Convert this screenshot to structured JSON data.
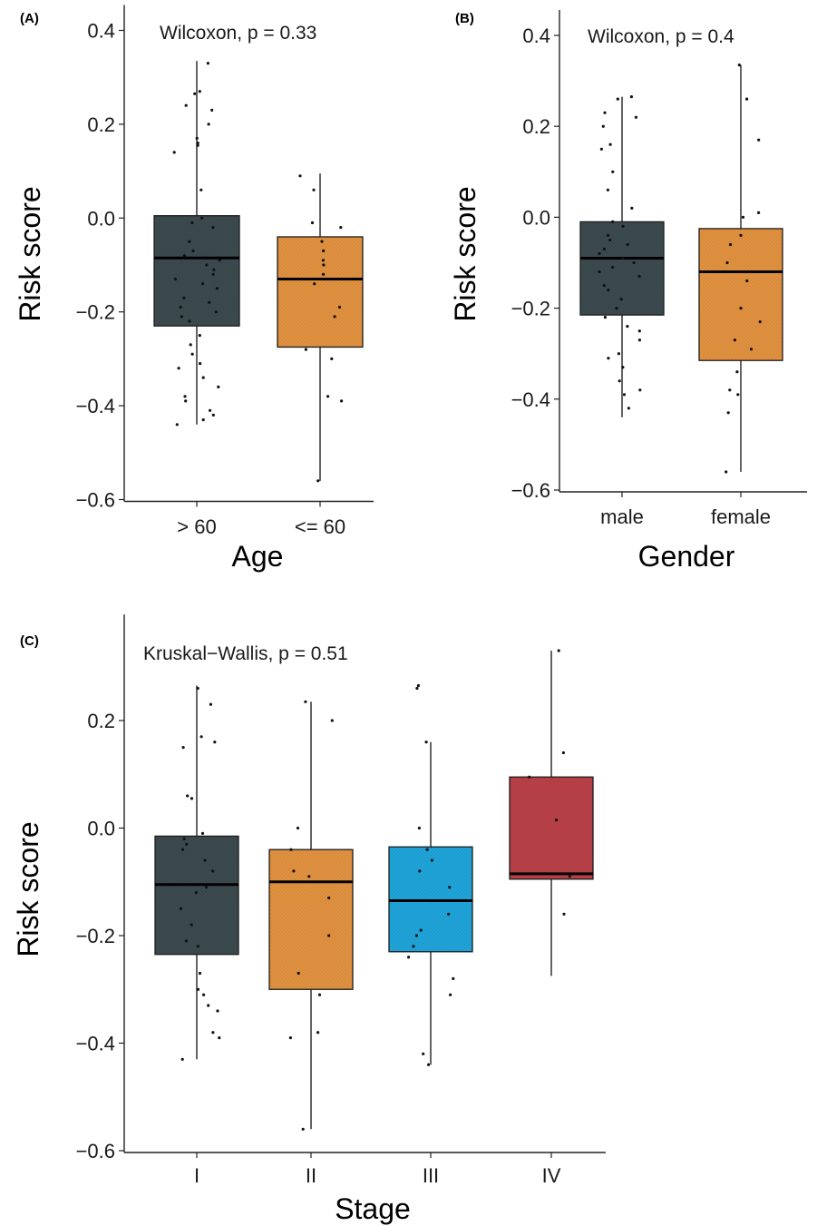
{
  "chart_data": [
    {
      "panel": "(A)",
      "type": "box",
      "annotation": "Wilcoxon, p = 0.33",
      "xlabel": "Age",
      "ylabel": "Risk score",
      "ylim": [
        -0.6,
        0.4
      ],
      "yticks": [
        "0.4",
        "0.2",
        "0.0",
        "-0.2",
        "-0.4",
        "-0.6"
      ],
      "categories": [
        "> 60",
        "<= 60"
      ],
      "colors": [
        "#3b4a4e",
        "#e0913f"
      ],
      "boxes": [
        {
          "whisker_low": -0.44,
          "q1": -0.23,
          "median": -0.085,
          "q3": 0.005,
          "whisker_high": 0.335
        },
        {
          "whisker_low": -0.56,
          "q1": -0.275,
          "median": -0.13,
          "q3": -0.04,
          "whisker_high": 0.095
        }
      ],
      "points": [
        [
          0.33,
          0.27,
          0.265,
          0.24,
          0.23,
          0.2,
          0.17,
          0.16,
          0.155,
          0.14,
          0.06,
          0.0,
          -0.01,
          -0.02,
          -0.05,
          -0.07,
          -0.08,
          -0.09,
          -0.1,
          -0.11,
          -0.12,
          -0.13,
          -0.14,
          -0.15,
          -0.17,
          -0.18,
          -0.19,
          -0.2,
          -0.21,
          -0.22,
          -0.25,
          -0.27,
          -0.29,
          -0.31,
          -0.32,
          -0.34,
          -0.36,
          -0.38,
          -0.39,
          -0.41,
          -0.42,
          -0.43,
          -0.44
        ],
        [
          0.09,
          0.06,
          -0.01,
          -0.02,
          -0.05,
          -0.07,
          -0.09,
          -0.1,
          -0.12,
          -0.14,
          -0.19,
          -0.21,
          -0.28,
          -0.3,
          -0.38,
          -0.39,
          -0.56
        ]
      ]
    },
    {
      "panel": "(B)",
      "type": "box",
      "annotation": "Wilcoxon, p = 0.4",
      "xlabel": "Gender",
      "ylabel": "Risk score",
      "ylim": [
        -0.6,
        0.4
      ],
      "yticks": [
        "0.4",
        "0.2",
        "0.0",
        "-0.2",
        "-0.4",
        "-0.6"
      ],
      "categories": [
        "male",
        "female"
      ],
      "colors": [
        "#3b4a4e",
        "#e0913f"
      ],
      "boxes": [
        {
          "whisker_low": -0.44,
          "q1": -0.215,
          "median": -0.09,
          "q3": -0.01,
          "whisker_high": 0.265
        },
        {
          "whisker_low": -0.56,
          "q1": -0.315,
          "median": -0.12,
          "q3": -0.025,
          "whisker_high": 0.335
        }
      ],
      "points": [
        [
          0.265,
          0.26,
          0.23,
          0.22,
          0.2,
          0.16,
          0.15,
          0.1,
          0.06,
          0.02,
          -0.01,
          -0.02,
          -0.04,
          -0.05,
          -0.06,
          -0.07,
          -0.08,
          -0.09,
          -0.1,
          -0.11,
          -0.12,
          -0.13,
          -0.15,
          -0.16,
          -0.18,
          -0.2,
          -0.22,
          -0.24,
          -0.25,
          -0.27,
          -0.3,
          -0.31,
          -0.33,
          -0.36,
          -0.38,
          -0.39,
          -0.42
        ],
        [
          0.335,
          0.26,
          0.17,
          0.01,
          0.0,
          -0.04,
          -0.06,
          -0.1,
          -0.14,
          -0.2,
          -0.23,
          -0.27,
          -0.29,
          -0.34,
          -0.38,
          -0.39,
          -0.43,
          -0.56
        ]
      ]
    },
    {
      "panel": "(C)",
      "type": "box",
      "annotation": "Kruskal−Wallis, p = 0.51",
      "xlabel": "Stage",
      "ylabel": "Risk score",
      "ylim": [
        -0.6,
        0.35
      ],
      "yticks": [
        "0.2",
        "0.0",
        "-0.2",
        "-0.4",
        "-0.6"
      ],
      "categories": [
        "I",
        "II",
        "III",
        "IV"
      ],
      "colors": [
        "#3b4a4e",
        "#e0913f",
        "#1fa3d8",
        "#b84048"
      ],
      "boxes": [
        {
          "whisker_low": -0.43,
          "q1": -0.235,
          "median": -0.105,
          "q3": -0.015,
          "whisker_high": 0.265
        },
        {
          "whisker_low": -0.56,
          "q1": -0.3,
          "median": -0.1,
          "q3": -0.04,
          "whisker_high": 0.235
        },
        {
          "whisker_low": -0.44,
          "q1": -0.23,
          "median": -0.135,
          "q3": -0.035,
          "whisker_high": 0.16
        },
        {
          "whisker_low": -0.275,
          "q1": -0.095,
          "median": -0.085,
          "q3": 0.095,
          "whisker_high": 0.33
        }
      ],
      "points": [
        [
          0.26,
          0.23,
          0.17,
          0.16,
          0.15,
          0.06,
          0.055,
          -0.01,
          -0.02,
          -0.03,
          -0.04,
          -0.06,
          -0.08,
          -0.11,
          -0.12,
          -0.15,
          -0.18,
          -0.21,
          -0.22,
          -0.27,
          -0.3,
          -0.31,
          -0.33,
          -0.34,
          -0.38,
          -0.39,
          -0.43
        ],
        [
          0.235,
          0.2,
          0.0,
          -0.04,
          -0.08,
          -0.09,
          -0.13,
          -0.2,
          -0.27,
          -0.31,
          -0.38,
          -0.39,
          -0.56
        ],
        [
          0.265,
          0.26,
          0.16,
          0.0,
          -0.04,
          -0.06,
          -0.08,
          -0.11,
          -0.16,
          -0.19,
          -0.2,
          -0.22,
          -0.24,
          -0.28,
          -0.31,
          -0.42,
          -0.44
        ],
        [
          0.33,
          0.14,
          0.095,
          0.015,
          -0.09,
          -0.16
        ]
      ]
    }
  ]
}
